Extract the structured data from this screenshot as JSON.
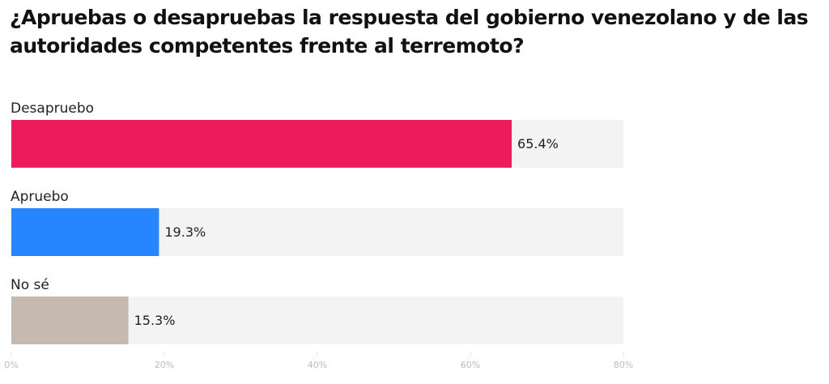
{
  "chart_data": {
    "type": "bar",
    "orientation": "horizontal",
    "title": "¿Apruebas o desapruebas la respuesta del gobierno venezolano y de las autoridades competentes frente al terremoto?",
    "categories": [
      "Desapruebo",
      "Apruebo",
      "No sé"
    ],
    "values": [
      65.4,
      19.3,
      15.3
    ],
    "value_labels": [
      "65.4%",
      "19.3%",
      "15.3%"
    ],
    "colors": [
      "#ec1b5a",
      "#2685ff",
      "#c5b9b0"
    ],
    "track_color": "#f3f3f3",
    "xlim": [
      0,
      80
    ],
    "xticks": [
      {
        "value": 0,
        "label": "0%"
      },
      {
        "value": 20,
        "label": "20%"
      },
      {
        "value": 40,
        "label": "40%"
      },
      {
        "value": 60,
        "label": "60%"
      },
      {
        "value": 80,
        "label": "80%"
      }
    ]
  }
}
